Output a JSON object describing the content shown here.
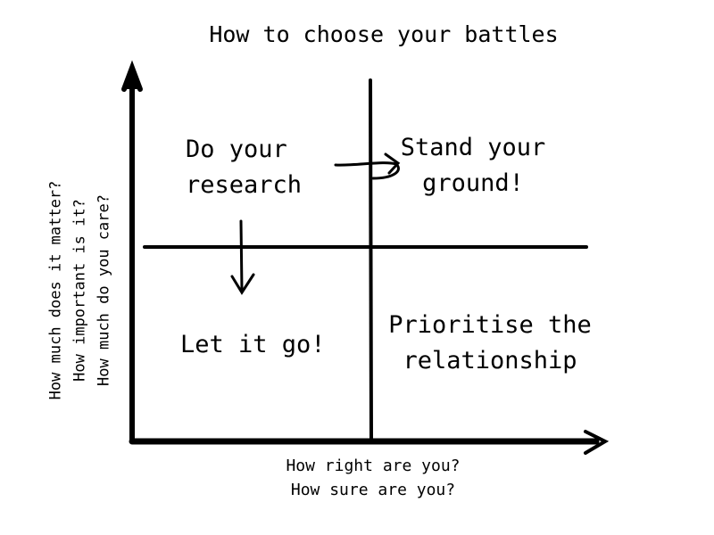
{
  "title": "How to choose your battles",
  "quadrants": {
    "top_left": [
      "Do your",
      "research"
    ],
    "top_right": [
      "Stand your",
      "ground!"
    ],
    "bottom_left": [
      "Let it go!"
    ],
    "bottom_right": [
      "Prioritise the",
      "relationship"
    ]
  },
  "x_axis_labels": [
    "How right are you?",
    "How sure are you?"
  ],
  "y_axis_labels": [
    "How much does it matter?",
    "How important is it?",
    "How much do you care?"
  ]
}
